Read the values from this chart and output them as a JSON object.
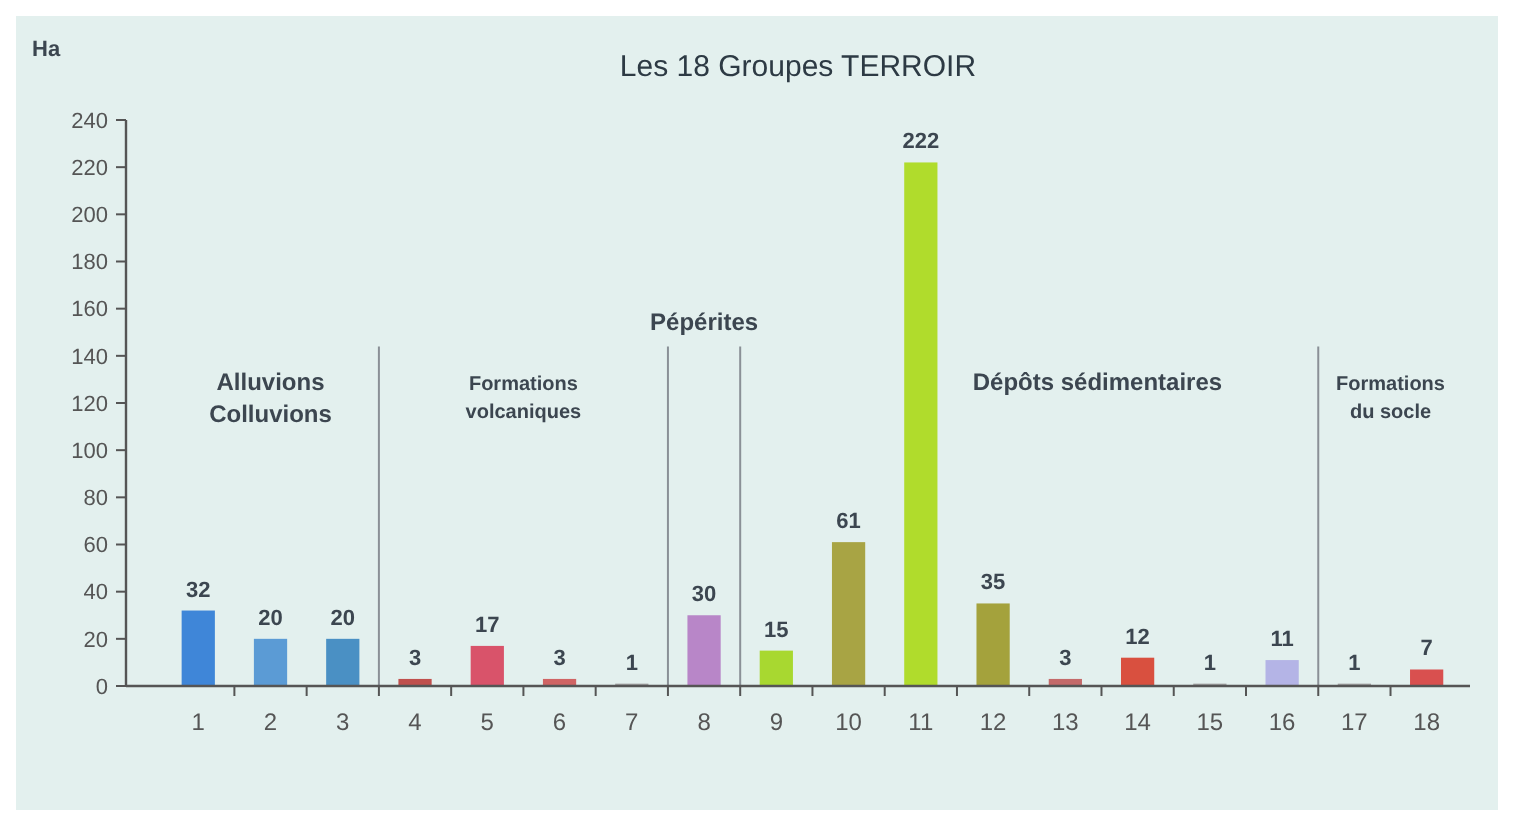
{
  "chart_data": {
    "type": "bar",
    "title": "Les 18 Groupes TERROIR",
    "ylabel": "Ha",
    "x": [
      1,
      2,
      3,
      4,
      5,
      6,
      7,
      8,
      9,
      10,
      11,
      12,
      13,
      14,
      15,
      16,
      17,
      18
    ],
    "values": [
      32,
      20,
      20,
      3,
      17,
      3,
      1,
      30,
      15,
      61,
      222,
      35,
      3,
      12,
      1,
      11,
      1,
      7
    ],
    "colors": [
      "#3f86d8",
      "#5b9bd5",
      "#4a90c4",
      "#c0504d",
      "#d9536a",
      "#d06464",
      "#a0a0a0",
      "#b886c8",
      "#a8d830",
      "#a8a444",
      "#b0dc2c",
      "#a4a23c",
      "#c46a6a",
      "#d9503f",
      "#a0a0a0",
      "#b4b4e6",
      "#a0a0a0",
      "#d9504f"
    ],
    "data_labels": true,
    "xlim": [
      0,
      18.6
    ],
    "xticks": [
      1,
      {
        "value": 1.5,
        "label": null
      },
      2,
      {
        "value": 2.5,
        "label": null
      },
      3,
      {
        "value": 3.5,
        "label": null
      },
      4,
      {
        "value": 4.5,
        "label": null
      },
      5,
      {
        "value": 5.5,
        "label": null
      },
      6,
      {
        "value": 6.5,
        "label": null
      },
      7,
      {
        "value": 7.5,
        "label": null
      },
      8,
      {
        "value": 8.5,
        "label": null
      },
      9,
      {
        "value": 9.5,
        "label": null
      },
      10,
      {
        "value": 10.5,
        "label": null
      },
      11,
      {
        "value": 11.5,
        "label": null
      },
      12,
      {
        "value": 12.5,
        "label": null
      },
      13,
      {
        "value": 13.5,
        "label": null
      },
      14,
      {
        "value": 14.5,
        "label": null
      },
      15,
      {
        "value": 15.5,
        "label": null
      },
      16,
      {
        "value": 16.5,
        "label": null
      },
      17,
      {
        "value": 17.5,
        "label": null
      },
      18
    ],
    "ylim": [
      0,
      240
    ],
    "yticks": [
      0,
      20,
      40,
      60,
      80,
      100,
      120,
      140,
      160,
      180,
      200,
      220,
      240
    ],
    "ref_lines": [
      {
        "axis": "x",
        "value": 3.5
      },
      {
        "axis": "x",
        "value": 7.5
      },
      {
        "axis": "x",
        "value": 8.5
      },
      {
        "axis": "x",
        "value": 16.5
      }
    ],
    "annotations": [
      "Alluvions\nColluvions",
      "Formations\nvolcaniques",
      "Pépérites",
      "Dépôts sédimentaires",
      "Formations\ndu socle"
    ]
  }
}
